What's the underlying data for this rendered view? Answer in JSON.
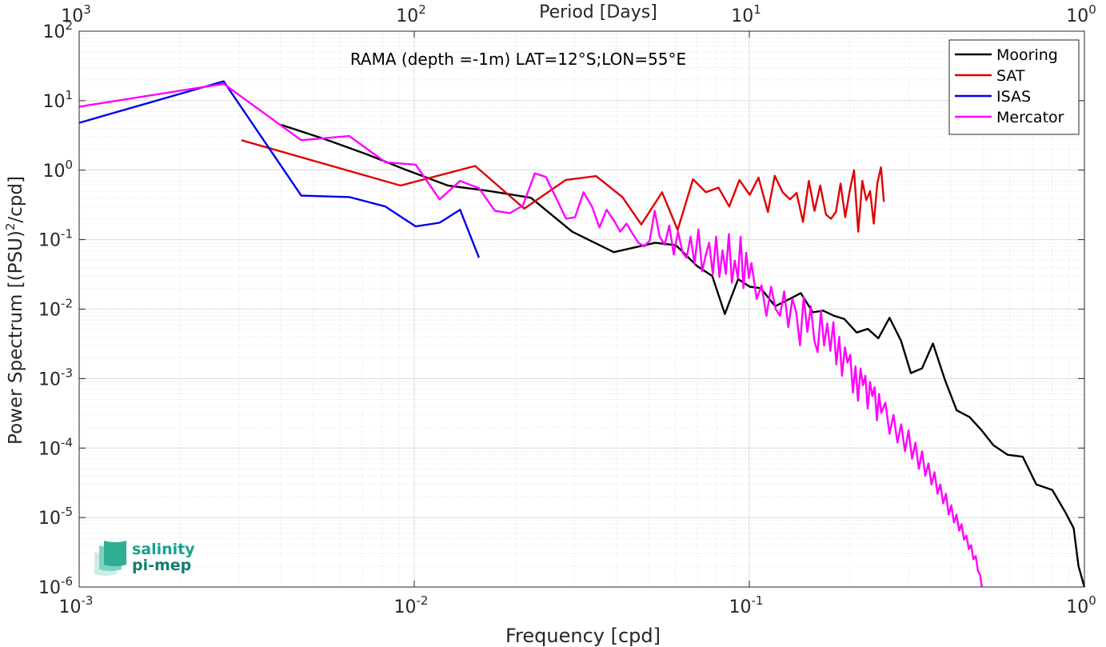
{
  "chart_data": {
    "type": "line",
    "title": "RAMA (depth =-1m) LAT=12°S;LON=55°E",
    "xlabel": "Frequency [cpd]",
    "ylabel_main": "Power Spectrum [(PSU)",
    "ylabel_sup": "2",
    "ylabel_tail": "/cpd]",
    "x2label": "Period [Days]",
    "xscale": "log",
    "yscale": "log",
    "xlim": [
      0.001,
      1
    ],
    "ylim": [
      1e-06,
      100
    ],
    "grid": true,
    "legend_position": "top-right",
    "x_ticks": [
      {
        "value": 0.001,
        "base": "10",
        "exp": "-3"
      },
      {
        "value": 0.01,
        "base": "10",
        "exp": "-2"
      },
      {
        "value": 0.1,
        "base": "10",
        "exp": "-1"
      },
      {
        "value": 1,
        "base": "10",
        "exp": "0"
      }
    ],
    "x2_ticks": [
      {
        "value": 0.001,
        "base": "10",
        "exp": "3"
      },
      {
        "value": 0.01,
        "base": "10",
        "exp": "2"
      },
      {
        "value": 0.1,
        "base": "10",
        "exp": "1"
      },
      {
        "value": 1,
        "base": "10",
        "exp": "0"
      }
    ],
    "y_ticks": [
      {
        "value": 100,
        "base": "10",
        "exp": "2"
      },
      {
        "value": 10,
        "base": "10",
        "exp": "1"
      },
      {
        "value": 1,
        "base": "10",
        "exp": "0"
      },
      {
        "value": 0.1,
        "base": "10",
        "exp": "-1"
      },
      {
        "value": 0.01,
        "base": "10",
        "exp": "-2"
      },
      {
        "value": 0.001,
        "base": "10",
        "exp": "-3"
      },
      {
        "value": 0.0001,
        "base": "10",
        "exp": "-4"
      },
      {
        "value": 1e-05,
        "base": "10",
        "exp": "-5"
      },
      {
        "value": 1e-06,
        "base": "10",
        "exp": "-6"
      }
    ],
    "series": [
      {
        "name": "Mooring",
        "color": "#000000",
        "x": [
          0.004,
          0.0054,
          0.0072,
          0.0095,
          0.0126,
          0.0168,
          0.0223,
          0.0296,
          0.0394,
          0.0524,
          0.0604,
          0.0697,
          0.0775,
          0.0845,
          0.0926,
          0.1003,
          0.1081,
          0.1194,
          0.1319,
          0.1425,
          0.1547,
          0.1661,
          0.1791,
          0.1921,
          0.2092,
          0.2257,
          0.2427,
          0.2621,
          0.2837,
          0.3035,
          0.3276,
          0.3532,
          0.3838,
          0.4158,
          0.4541,
          0.4934,
          0.5352,
          0.5906,
          0.6547,
          0.7184,
          0.802,
          0.8765,
          0.929,
          0.96,
          1.0
        ],
        "y": [
          4.5,
          2.8,
          1.7,
          1.0,
          0.6,
          0.5,
          0.4,
          0.13,
          0.066,
          0.09,
          0.083,
          0.042,
          0.03,
          0.0085,
          0.027,
          0.021,
          0.02,
          0.011,
          0.014,
          0.017,
          0.009,
          0.0095,
          0.008,
          0.0072,
          0.0046,
          0.0052,
          0.0038,
          0.0075,
          0.0035,
          0.0012,
          0.0014,
          0.0032,
          0.00095,
          0.00035,
          0.00028,
          0.00018,
          0.00011,
          8e-05,
          7.5e-05,
          3e-05,
          2.5e-05,
          1.2e-05,
          7e-06,
          2e-06,
          1e-06
        ]
      },
      {
        "name": "SAT",
        "color": "#e00000",
        "x": [
          0.00305,
          0.0091,
          0.0152,
          0.0213,
          0.0283,
          0.0349,
          0.0418,
          0.0476,
          0.0549,
          0.0611,
          0.0679,
          0.0742,
          0.0809,
          0.0871,
          0.0934,
          0.1003,
          0.1065,
          0.1136,
          0.1191,
          0.1257,
          0.1323,
          0.1384,
          0.1446,
          0.1505,
          0.1565,
          0.1628,
          0.1693,
          0.1753,
          0.1813,
          0.1872,
          0.1933,
          0.1993,
          0.2053,
          0.2114,
          0.2174,
          0.2234,
          0.2293,
          0.2352,
          0.2411,
          0.2471,
          0.2522
        ],
        "y": [
          2.7,
          0.6,
          1.15,
          0.28,
          0.72,
          0.82,
          0.41,
          0.165,
          0.48,
          0.138,
          0.74,
          0.48,
          0.56,
          0.3,
          0.72,
          0.44,
          0.78,
          0.25,
          0.83,
          0.48,
          0.38,
          0.47,
          0.18,
          0.7,
          0.26,
          0.6,
          0.23,
          0.2,
          0.25,
          0.64,
          0.21,
          0.5,
          1.0,
          0.13,
          0.7,
          0.37,
          0.5,
          0.17,
          0.65,
          1.1,
          0.35
        ]
      },
      {
        "name": "ISAS",
        "color": "#0000ee",
        "x": [
          0.001,
          0.0027,
          0.0046,
          0.0064,
          0.0082,
          0.0101,
          0.0119,
          0.0137,
          0.0156
        ],
        "y": [
          4.8,
          19.0,
          0.43,
          0.41,
          0.3,
          0.155,
          0.175,
          0.27,
          0.055
        ]
      },
      {
        "name": "Mercator",
        "color": "#ff00ff",
        "x": [
          0.001,
          0.0027,
          0.0046,
          0.0064,
          0.0082,
          0.0101,
          0.0119,
          0.0137,
          0.0156,
          0.0174,
          0.0193,
          0.0211,
          0.0229,
          0.0247,
          0.0265,
          0.0284,
          0.0302,
          0.032,
          0.0339,
          0.0357,
          0.0375,
          0.0394,
          0.0412,
          0.043,
          0.0449,
          0.0467,
          0.0485,
          0.0504,
          0.0522,
          0.054,
          0.0559,
          0.0577,
          0.0595,
          0.0613,
          0.0632,
          0.065,
          0.0668,
          0.0686,
          0.0705,
          0.0723,
          0.0741,
          0.0759,
          0.0778,
          0.0796,
          0.0814,
          0.0832,
          0.0851,
          0.0869,
          0.0887,
          0.0905,
          0.0924,
          0.0942,
          0.096,
          0.0979,
          0.0997,
          0.1015,
          0.1052,
          0.1088,
          0.1125,
          0.1161,
          0.1198,
          0.1234,
          0.1271,
          0.1307,
          0.1344,
          0.138,
          0.1417,
          0.1453,
          0.149,
          0.1526,
          0.1563,
          0.1599,
          0.1636,
          0.1672,
          0.1709,
          0.1745,
          0.1782,
          0.1818,
          0.1855,
          0.1891,
          0.1928,
          0.1964,
          0.2001,
          0.2037,
          0.2074,
          0.211,
          0.2147,
          0.2183,
          0.222,
          0.2256,
          0.2293,
          0.2329,
          0.2366,
          0.2402,
          0.2439,
          0.2475,
          0.2548,
          0.2621,
          0.2694,
          0.2767,
          0.284,
          0.2913,
          0.2986,
          0.3059,
          0.3132,
          0.3205,
          0.3278,
          0.3351,
          0.3424,
          0.3497,
          0.357,
          0.3643,
          0.3716,
          0.3789,
          0.3862,
          0.3935,
          0.4008,
          0.4081,
          0.4154,
          0.4227,
          0.43,
          0.4373,
          0.4446,
          0.4519,
          0.4592,
          0.4665,
          0.4738,
          0.4811,
          0.4884,
          0.494
        ],
        "y": [
          8.2,
          17.5,
          2.7,
          3.1,
          1.3,
          1.2,
          0.38,
          0.7,
          0.55,
          0.26,
          0.24,
          0.31,
          0.9,
          0.8,
          0.4,
          0.2,
          0.21,
          0.48,
          0.3,
          0.15,
          0.27,
          0.19,
          0.13,
          0.17,
          0.12,
          0.09,
          0.08,
          0.096,
          0.26,
          0.11,
          0.085,
          0.16,
          0.061,
          0.13,
          0.065,
          0.055,
          0.11,
          0.045,
          0.14,
          0.035,
          0.06,
          0.09,
          0.032,
          0.11,
          0.029,
          0.07,
          0.032,
          0.12,
          0.024,
          0.05,
          0.028,
          0.11,
          0.02,
          0.065,
          0.028,
          0.046,
          0.014,
          0.022,
          0.008,
          0.021,
          0.01,
          0.008,
          0.018,
          0.0055,
          0.014,
          0.009,
          0.003,
          0.015,
          0.0047,
          0.011,
          0.0035,
          0.0024,
          0.0094,
          0.003,
          0.0062,
          0.0025,
          0.0065,
          0.0016,
          0.004,
          0.0011,
          0.0028,
          0.0017,
          0.0022,
          0.00063,
          0.0015,
          0.00048,
          0.0014,
          0.0008,
          0.0011,
          0.00037,
          0.0009,
          0.00056,
          0.00075,
          0.00025,
          0.0006,
          0.00032,
          0.00045,
          0.00016,
          0.0003,
          0.00012,
          0.00022,
          9e-05,
          0.00018,
          7e-05,
          0.00012,
          5e-05,
          9e-05,
          4e-05,
          6e-05,
          3e-05,
          4.5e-05,
          2.2e-05,
          3e-05,
          1.6e-05,
          2.2e-05,
          1.1e-05,
          1.5e-05,
          8.5e-06,
          1.1e-05,
          6.5e-06,
          8e-06,
          4.8e-06,
          5.5e-06,
          3.5e-06,
          4e-06,
          2.5e-06,
          2.8e-06,
          1.7e-06,
          1.5e-06,
          1e-06
        ]
      }
    ]
  },
  "logo": {
    "line1": "salinity",
    "line2": "pi-mep",
    "color_text": "#14a38b",
    "color_text2": "#0f7f70"
  }
}
